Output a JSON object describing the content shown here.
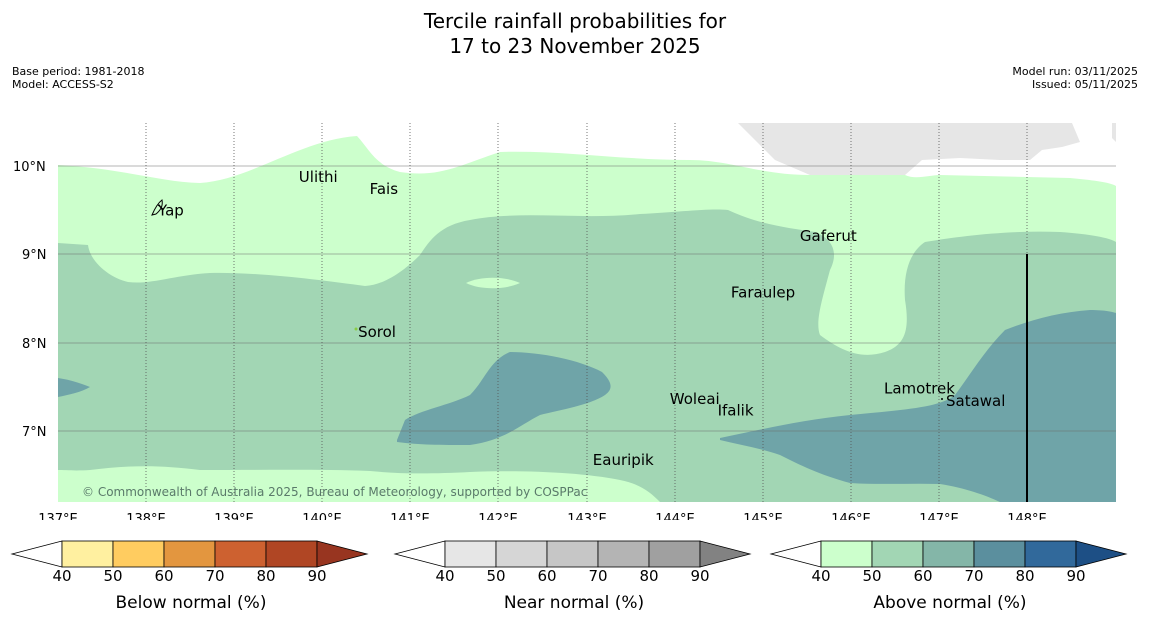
{
  "title": {
    "line1": "Tercile rainfall probabilities for",
    "line2": "17 to 23 November 2025"
  },
  "meta_left": {
    "base_period": "Base period: 1981-2018",
    "model": "Model: ACCESS-S2"
  },
  "meta_right": {
    "model_run": "Model run: 03/11/2025",
    "issued": "Issued: 05/11/2025"
  },
  "map": {
    "latitude_labels": [
      "10°N",
      "9°N",
      "8°N",
      "7°N"
    ],
    "longitude_labels": [
      "137°E",
      "138°E",
      "139°E",
      "140°E",
      "141°E",
      "142°E",
      "143°E",
      "144°E",
      "145°E",
      "146°E",
      "147°E",
      "148°E"
    ],
    "lat_range": [
      6.2,
      10.5
    ],
    "lon_range": [
      137.0,
      148.95
    ],
    "places": [
      {
        "name": "Ulithi",
        "lon": 139.72,
        "lat": 9.9
      },
      {
        "name": "Fais",
        "lon": 140.52,
        "lat": 9.76
      },
      {
        "name": "Yap",
        "lon": 138.13,
        "lat": 9.52
      },
      {
        "name": "Gaferut",
        "lon": 145.38,
        "lat": 9.23
      },
      {
        "name": "Faraulep",
        "lon": 144.6,
        "lat": 8.59
      },
      {
        "name": "Sorol",
        "lon": 140.39,
        "lat": 8.14
      },
      {
        "name": "Lamotrek",
        "lon": 146.33,
        "lat": 7.5
      },
      {
        "name": "Woleai",
        "lon": 143.91,
        "lat": 7.38
      },
      {
        "name": "Ifalik",
        "lon": 144.45,
        "lat": 7.25
      },
      {
        "name": "Satawal",
        "lon": 147.03,
        "lat": 7.36
      },
      {
        "name": "Eauripik",
        "lon": 143.04,
        "lat": 6.69
      }
    ],
    "copyright": "© Commonwealth of Australia 2025, Bureau of Meteorology, supported by COSPPac"
  },
  "colorbars": [
    {
      "name": "below",
      "label": "Below normal (%)",
      "ticks": [
        "40",
        "50",
        "60",
        "70",
        "80",
        "90"
      ],
      "colors": [
        "#fff0a0",
        "#ffcc60",
        "#e3963f",
        "#cd6130",
        "#b04624"
      ],
      "extend_color": "#983520"
    },
    {
      "name": "near",
      "label": "Near normal (%)",
      "ticks": [
        "40",
        "50",
        "60",
        "70",
        "80",
        "90"
      ],
      "colors": [
        "#e6e6e6",
        "#d6d6d6",
        "#c6c6c6",
        "#b4b4b4",
        "#a0a0a0"
      ],
      "extend_color": "#828282"
    },
    {
      "name": "above",
      "label": "Above normal (%)",
      "ticks": [
        "40",
        "50",
        "60",
        "70",
        "80",
        "90"
      ],
      "colors": [
        "#ccffcc",
        "#a2d6b4",
        "#84b6a8",
        "#5b8f9e",
        "#31699b"
      ],
      "extend_color": "#1d4f85"
    }
  ]
}
